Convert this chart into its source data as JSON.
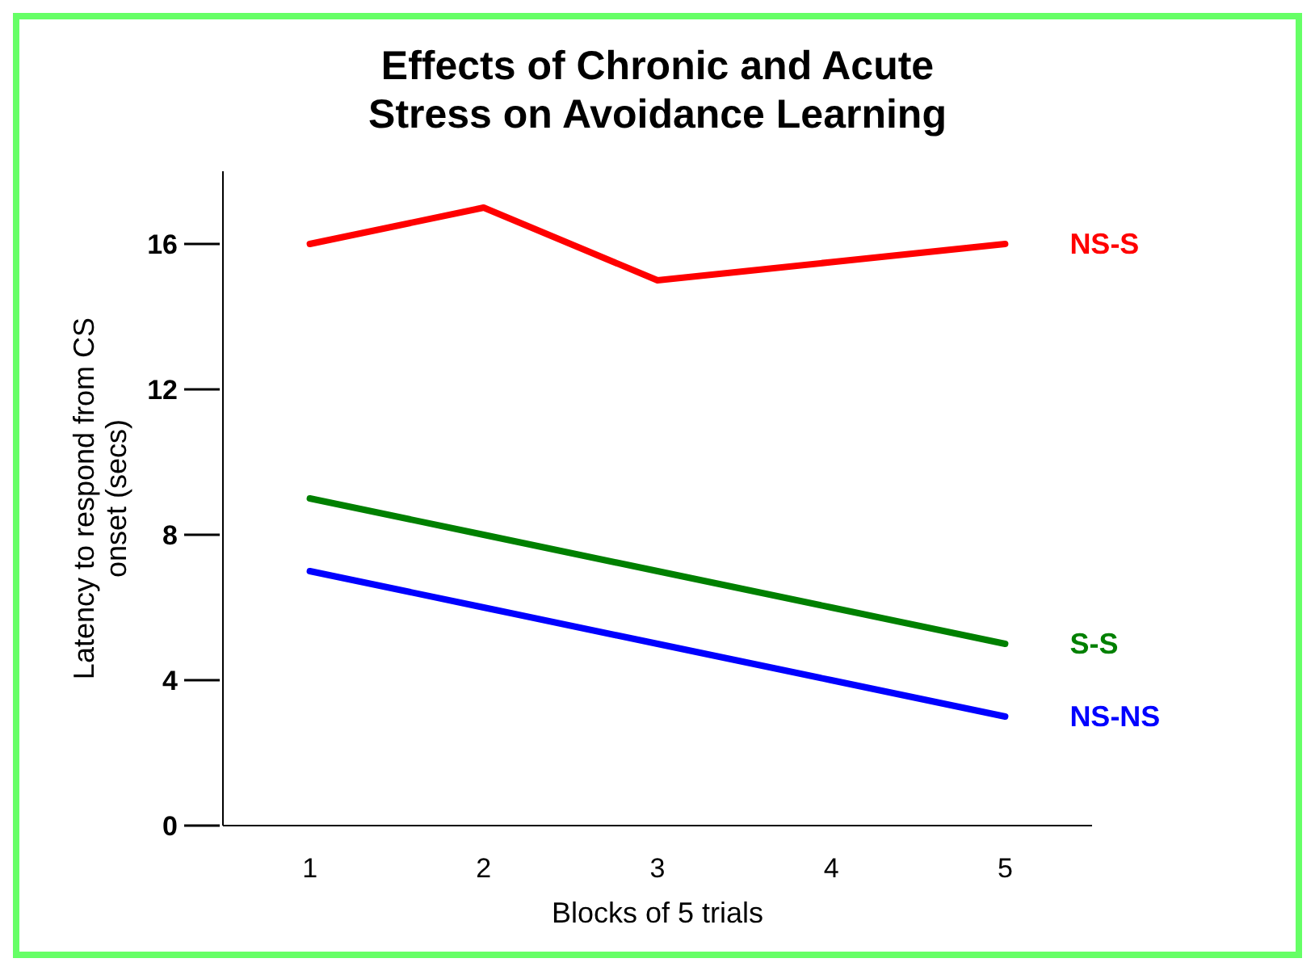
{
  "chart_data": {
    "type": "line",
    "title": "Effects of Chronic and Acute Stress on Avoidance Learning",
    "xlabel": "Blocks of 5 trials",
    "ylabel": "Latency to respond from CS onset (secs)",
    "categories": [
      "1",
      "2",
      "3",
      "4",
      "5"
    ],
    "series": [
      {
        "name": "NS-S",
        "color": "#ff0000",
        "values": [
          16,
          17,
          15,
          15.5,
          16
        ]
      },
      {
        "name": "S-S",
        "color": "#008000",
        "values": [
          9,
          8,
          7,
          6,
          5
        ]
      },
      {
        "name": "NS-NS",
        "color": "#0000ff",
        "values": [
          7,
          6,
          5,
          4,
          3
        ]
      }
    ],
    "ylim": [
      0,
      18
    ],
    "yticks": [
      0,
      4,
      8,
      12,
      16
    ],
    "marker": "none",
    "line_style": "solid"
  }
}
